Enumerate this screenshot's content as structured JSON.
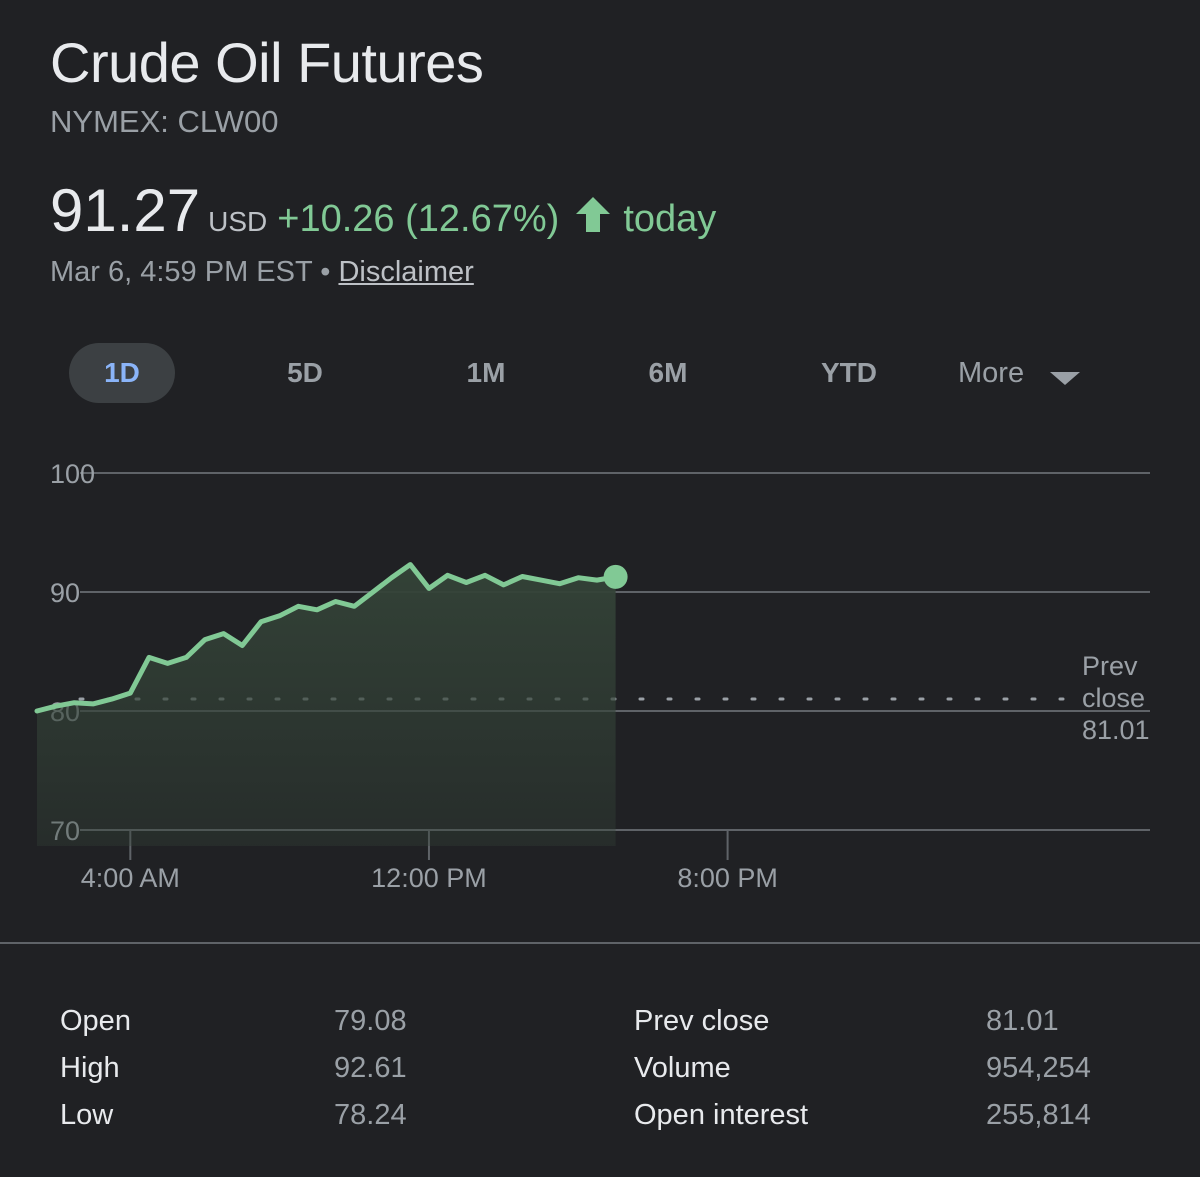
{
  "header": {
    "title": "Crude Oil Futures",
    "ticker": "NYMEX: CLW00"
  },
  "quote": {
    "price": "91.27",
    "currency": "USD",
    "change": "+10.26 (12.67%)",
    "direction_icon": "arrow-up-icon",
    "period": "today",
    "timestamp": "Mar 6, 4:59 PM EST",
    "separator": "•",
    "disclaimer": "Disclaimer",
    "positive_color": "#81c995"
  },
  "tabs": {
    "items": [
      "1D",
      "5D",
      "1M",
      "6M",
      "YTD"
    ],
    "active": "1D",
    "more": "More",
    "more_icon": "caret-down-icon"
  },
  "chart_data": {
    "type": "area",
    "y_ticks": [
      "100",
      "90",
      "80",
      "70"
    ],
    "ylim": [
      70,
      100
    ],
    "x_ticks": [
      "4:00 AM",
      "12:00 PM",
      "8:00 PM"
    ],
    "x_unit": "hours since midnight",
    "x_tick_values": [
      4,
      12,
      20
    ],
    "xlim": [
      0,
      24
    ],
    "grid": true,
    "reference_line": {
      "label_lines": [
        "Prev",
        "close",
        "81.01"
      ],
      "value": 81.01,
      "style": "dotted"
    },
    "series": [
      {
        "line_color": "#81c995",
        "fill_color": "#334237",
        "x": [
          1.5,
          2.0,
          2.5,
          3.0,
          3.5,
          4.0,
          4.5,
          5.0,
          5.5,
          6.0,
          6.5,
          7.0,
          7.5,
          8.0,
          8.5,
          9.0,
          9.5,
          10.0,
          10.5,
          11.0,
          11.5,
          12.0,
          12.5,
          13.0,
          13.5,
          14.0,
          14.5,
          15.0,
          15.5,
          16.0,
          16.5,
          17.0
        ],
        "y": [
          80.0,
          80.4,
          80.7,
          80.6,
          81.0,
          81.5,
          84.5,
          84.0,
          84.5,
          86.0,
          86.5,
          85.5,
          87.5,
          88.0,
          88.8,
          88.5,
          89.2,
          88.8,
          90.0,
          91.2,
          92.3,
          90.3,
          91.4,
          90.8,
          91.4,
          90.6,
          91.3,
          91.0,
          90.7,
          91.2,
          91.0,
          91.27
        ]
      }
    ]
  },
  "stats": {
    "left": [
      {
        "label": "Open",
        "value": "79.08"
      },
      {
        "label": "High",
        "value": "92.61"
      },
      {
        "label": "Low",
        "value": "78.24"
      }
    ],
    "right": [
      {
        "label": "Prev close",
        "value": "81.01"
      },
      {
        "label": "Volume",
        "value": "954,254"
      },
      {
        "label": "Open interest",
        "value": "255,814"
      }
    ]
  }
}
